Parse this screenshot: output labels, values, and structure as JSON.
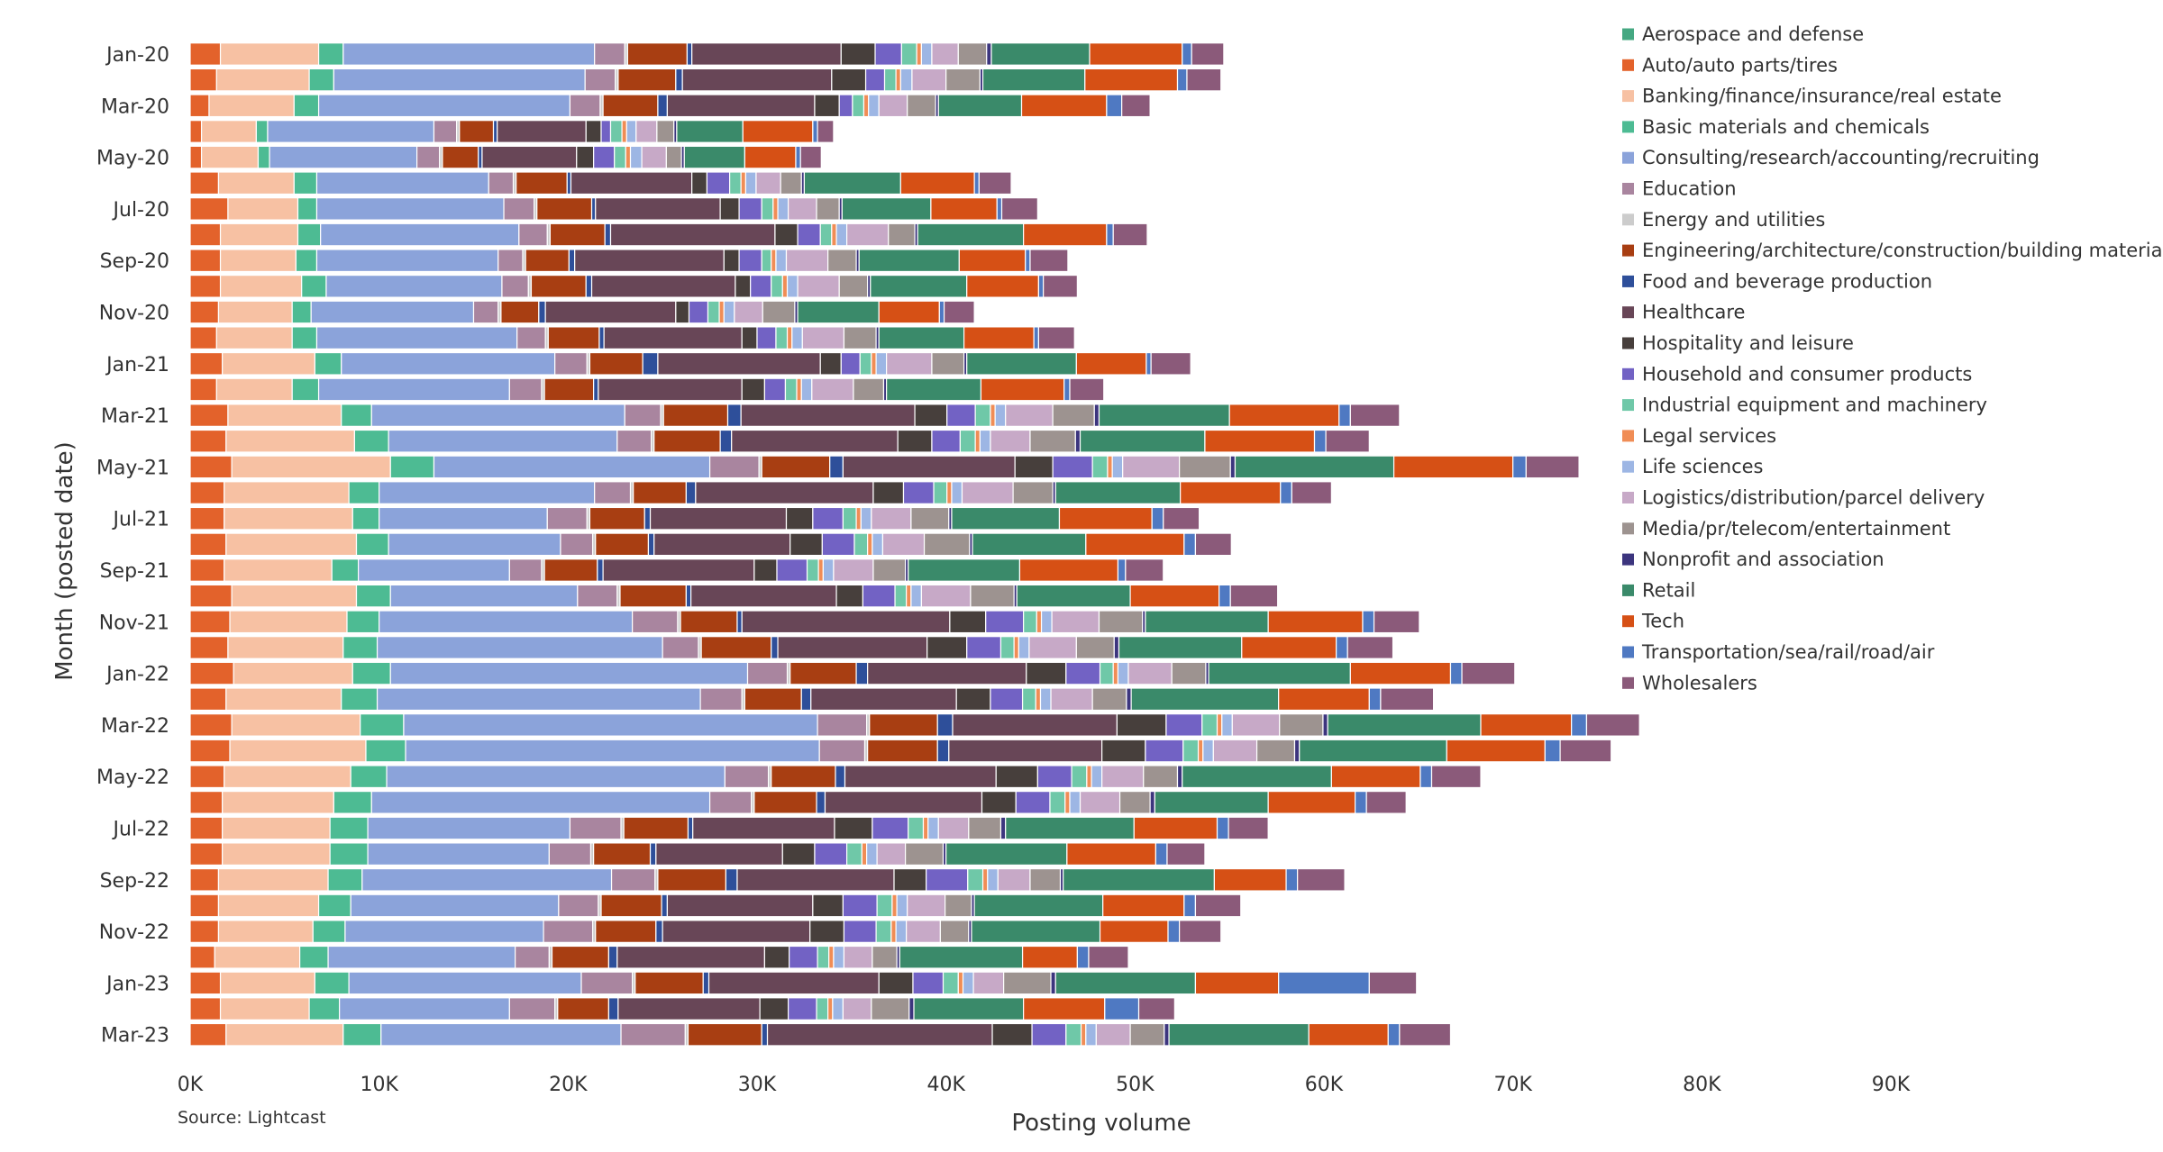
{
  "chart_data": {
    "type": "bar",
    "orientation": "horizontal",
    "stacked": true,
    "title": "",
    "xlabel": "Posting volume",
    "ylabel": "Month (posted date)",
    "xlim": [
      0,
      90000
    ],
    "x_ticks": [
      0,
      10000,
      20000,
      30000,
      40000,
      50000,
      60000,
      70000,
      80000,
      90000
    ],
    "x_tick_labels": [
      "0K",
      "10K",
      "20K",
      "30K",
      "40K",
      "50K",
      "60K",
      "70K",
      "80K",
      "90K"
    ],
    "grid": false,
    "legend_position": "right",
    "source": "Source: Lightcast",
    "categories": [
      "Jan-20",
      "Feb-20",
      "Mar-20",
      "Apr-20",
      "May-20",
      "Jun-20",
      "Jul-20",
      "Aug-20",
      "Sep-20",
      "Oct-20",
      "Nov-20",
      "Dec-20",
      "Jan-21",
      "Feb-21",
      "Mar-21",
      "Apr-21",
      "May-21",
      "Jun-21",
      "Jul-21",
      "Aug-21",
      "Sep-21",
      "Oct-21",
      "Nov-21",
      "Dec-21",
      "Jan-22",
      "Feb-22",
      "Mar-22",
      "Apr-22",
      "May-22",
      "Jun-22",
      "Jul-22",
      "Aug-22",
      "Sep-22",
      "Oct-22",
      "Nov-22",
      "Dec-22",
      "Jan-23",
      "Feb-23",
      "Mar-23"
    ],
    "category_labels": [
      "Jan-20",
      "",
      "Mar-20",
      "",
      "May-20",
      "",
      "Jul-20",
      "",
      "Sep-20",
      "",
      "Nov-20",
      "",
      "Jan-21",
      "",
      "Mar-21",
      "",
      "May-21",
      "",
      "Jul-21",
      "",
      "Sep-21",
      "",
      "Nov-21",
      "",
      "Jan-22",
      "",
      "Mar-22",
      "",
      "May-22",
      "",
      "Jul-22",
      "",
      "Sep-22",
      "",
      "Nov-22",
      "",
      "Jan-23",
      "",
      "Mar-23"
    ],
    "series": [
      {
        "name": "Aerospace and defense",
        "color": "#45a882"
      },
      {
        "name": "Auto/auto parts/tires",
        "color": "#e3622b"
      },
      {
        "name": "Banking/finance/insurance/real estate",
        "color": "#f7c1a3"
      },
      {
        "name": "Basic materials and chemicals",
        "color": "#4dbb93"
      },
      {
        "name": "Consulting/research/accounting/recruiting",
        "color": "#8ba3da"
      },
      {
        "name": "Education",
        "color": "#a9859f"
      },
      {
        "name": "Energy and utilities",
        "color": "#cccccc"
      },
      {
        "name": "Engineering/architecture/construction/building materials",
        "color": "#a83e12"
      },
      {
        "name": "Food and beverage production",
        "color": "#2e4f9a"
      },
      {
        "name": "Healthcare",
        "color": "#684657"
      },
      {
        "name": "Hospitality and leisure",
        "color": "#473f3c"
      },
      {
        "name": "Household and consumer products",
        "color": "#7262c4"
      },
      {
        "name": "Industrial equipment and machinery",
        "color": "#6fc8a8"
      },
      {
        "name": "Legal services",
        "color": "#f08d56"
      },
      {
        "name": "Life sciences",
        "color": "#9db6e4"
      },
      {
        "name": "Logistics/distribution/parcel delivery",
        "color": "#c7a9c7"
      },
      {
        "name": "Media/pr/telecom/entertainment",
        "color": "#9d9390"
      },
      {
        "name": "Nonprofit and association",
        "color": "#3c357e"
      },
      {
        "name": "Retail",
        "color": "#3a8a6a"
      },
      {
        "name": "Tech",
        "color": "#d65015"
      },
      {
        "name": "Transportation/sea/rail/road/air",
        "color": "#4f79c2"
      },
      {
        "name": "Wholesalers",
        "color": "#8b5a7a"
      }
    ],
    "values": [
      [
        0,
        1600,
        5200,
        1300,
        13300,
        1600,
        150,
        3150,
        250,
        7900,
        1800,
        1400,
        800,
        250,
        550,
        1400,
        1500,
        250,
        5200,
        4900,
        500,
        1700
      ],
      [
        0,
        1400,
        4900,
        1300,
        13300,
        1600,
        150,
        3050,
        350,
        7900,
        1800,
        1000,
        600,
        250,
        600,
        1800,
        1800,
        150,
        5400,
        4900,
        500,
        1800
      ],
      [
        0,
        1000,
        4500,
        1300,
        13300,
        1600,
        150,
        2900,
        500,
        7800,
        1300,
        700,
        600,
        250,
        550,
        1500,
        1500,
        150,
        4400,
        4500,
        800,
        1500
      ],
      [
        0,
        600,
        2900,
        600,
        8800,
        1200,
        150,
        1800,
        200,
        4700,
        800,
        500,
        600,
        250,
        500,
        1100,
        900,
        150,
        3500,
        3700,
        250,
        850
      ],
      [
        0,
        600,
        3000,
        600,
        7800,
        1200,
        150,
        1900,
        200,
        5000,
        900,
        1100,
        600,
        250,
        600,
        1300,
        800,
        150,
        3200,
        2700,
        250,
        1100
      ],
      [
        0,
        1500,
        4000,
        1200,
        9100,
        1300,
        150,
        2700,
        200,
        6400,
        800,
        1200,
        600,
        250,
        550,
        1300,
        1100,
        150,
        5100,
        3900,
        250,
        1700
      ],
      [
        0,
        2000,
        3700,
        1000,
        9900,
        1600,
        150,
        2900,
        200,
        6600,
        1000,
        1200,
        600,
        250,
        550,
        1500,
        1200,
        150,
        4700,
        3500,
        250,
        1900
      ],
      [
        0,
        1600,
        4100,
        1200,
        10500,
        1500,
        150,
        2900,
        300,
        8700,
        1200,
        1200,
        600,
        250,
        550,
        2200,
        1400,
        150,
        5600,
        4400,
        350,
        1800
      ],
      [
        0,
        1600,
        4000,
        1100,
        9600,
        1300,
        150,
        2300,
        300,
        7900,
        800,
        1200,
        500,
        250,
        550,
        2200,
        1500,
        150,
        5300,
        3500,
        250,
        2000
      ],
      [
        0,
        1600,
        4300,
        1300,
        9300,
        1400,
        150,
        2900,
        300,
        7600,
        800,
        1100,
        600,
        250,
        550,
        2200,
        1500,
        150,
        5100,
        3800,
        250,
        1800
      ],
      [
        0,
        1500,
        3900,
        1000,
        8600,
        1300,
        150,
        2000,
        350,
        6900,
        700,
        1000,
        600,
        250,
        550,
        1500,
        1700,
        150,
        4300,
        3200,
        250,
        1600
      ],
      [
        0,
        1400,
        4000,
        1300,
        10600,
        1500,
        150,
        2700,
        250,
        7300,
        800,
        1000,
        600,
        250,
        550,
        2200,
        1700,
        150,
        4500,
        3700,
        250,
        1900
      ],
      [
        0,
        1700,
        4900,
        1400,
        11300,
        1700,
        150,
        2800,
        800,
        8600,
        1100,
        1000,
        600,
        250,
        550,
        2400,
        1700,
        150,
        5800,
        3700,
        250,
        2100
      ],
      [
        0,
        1400,
        4000,
        1400,
        10100,
        1700,
        150,
        2600,
        250,
        7600,
        1200,
        1100,
        600,
        250,
        550,
        2200,
        1600,
        150,
        5000,
        4400,
        300,
        1800
      ],
      [
        0,
        2000,
        6000,
        1600,
        13400,
        1900,
        150,
        3400,
        700,
        9200,
        1700,
        1500,
        800,
        250,
        550,
        2500,
        2200,
        250,
        6900,
        5800,
        600,
        2600
      ],
      [
        0,
        1900,
        6800,
        1800,
        12100,
        1800,
        150,
        3500,
        600,
        8800,
        1800,
        1500,
        800,
        250,
        550,
        2100,
        2400,
        250,
        6600,
        5800,
        600,
        2300
      ],
      [
        0,
        2200,
        8400,
        2300,
        14600,
        2600,
        150,
        3600,
        700,
        9100,
        2000,
        2100,
        800,
        250,
        550,
        3000,
        2700,
        250,
        8400,
        6300,
        700,
        2800
      ],
      [
        0,
        1800,
        6600,
        1600,
        11400,
        1900,
        150,
        2800,
        500,
        9400,
        1600,
        1600,
        700,
        250,
        550,
        2700,
        2100,
        150,
        6600,
        5300,
        600,
        2100
      ],
      [
        0,
        1800,
        6800,
        1400,
        8900,
        2100,
        150,
        2900,
        300,
        7200,
        1400,
        1600,
        700,
        250,
        550,
        2100,
        2000,
        150,
        5700,
        4900,
        600,
        1900
      ],
      [
        0,
        1900,
        6900,
        1700,
        9100,
        1700,
        150,
        2800,
        300,
        7200,
        1700,
        1700,
        700,
        250,
        550,
        2200,
        2400,
        150,
        6000,
        5200,
        600,
        1900
      ],
      [
        0,
        1800,
        5700,
        1400,
        8000,
        1700,
        150,
        2800,
        300,
        8000,
        1200,
        1600,
        600,
        250,
        550,
        2100,
        1700,
        150,
        5900,
        5200,
        400,
        2000
      ],
      [
        0,
        2200,
        6600,
        1800,
        9900,
        2100,
        150,
        3500,
        250,
        7700,
        1400,
        1700,
        600,
        250,
        550,
        2600,
        2300,
        150,
        6000,
        4700,
        600,
        2500
      ],
      [
        0,
        2100,
        6200,
        1700,
        13400,
        2400,
        150,
        3000,
        250,
        11000,
        1900,
        2000,
        700,
        250,
        550,
        2500,
        2300,
        150,
        6500,
        5000,
        600,
        2400
      ],
      [
        0,
        2000,
        6100,
        1800,
        15100,
        1900,
        150,
        3700,
        350,
        7900,
        2100,
        1800,
        700,
        250,
        550,
        2500,
        2000,
        250,
        6500,
        5000,
        600,
        2400
      ],
      [
        0,
        2300,
        6300,
        2000,
        18900,
        2100,
        150,
        3500,
        600,
        8400,
        2100,
        1800,
        700,
        250,
        550,
        2300,
        1800,
        150,
        7500,
        5300,
        600,
        2800
      ],
      [
        0,
        1900,
        6100,
        1900,
        17100,
        2200,
        150,
        3000,
        500,
        7700,
        1800,
        1700,
        700,
        250,
        550,
        2200,
        1800,
        250,
        7800,
        4800,
        600,
        2800
      ],
      [
        0,
        2200,
        6800,
        2300,
        21900,
        2600,
        150,
        3600,
        800,
        8700,
        2600,
        1900,
        800,
        250,
        550,
        2500,
        2300,
        250,
        8100,
        4800,
        800,
        2800
      ],
      [
        0,
        2100,
        7200,
        2100,
        21900,
        2400,
        150,
        3700,
        600,
        8100,
        2300,
        2000,
        800,
        250,
        550,
        2300,
        2000,
        250,
        7800,
        5200,
        800,
        2700
      ],
      [
        0,
        1800,
        6700,
        1900,
        17900,
        2300,
        150,
        3400,
        500,
        8000,
        2200,
        1800,
        800,
        250,
        550,
        2200,
        1800,
        250,
        7900,
        4700,
        600,
        2600
      ],
      [
        0,
        1700,
        5900,
        2000,
        17900,
        2200,
        150,
        3300,
        450,
        8300,
        1800,
        1800,
        800,
        250,
        550,
        2100,
        1600,
        250,
        6000,
        4600,
        600,
        2100
      ],
      [
        0,
        1700,
        5700,
        2000,
        10700,
        2700,
        150,
        3400,
        250,
        7500,
        2000,
        1900,
        800,
        250,
        550,
        1600,
        1700,
        250,
        6800,
        4400,
        600,
        2100
      ],
      [
        0,
        1700,
        5700,
        2000,
        9600,
        2200,
        150,
        3000,
        300,
        6700,
        1700,
        1700,
        800,
        250,
        550,
        1500,
        2000,
        150,
        6400,
        4700,
        600,
        2000
      ],
      [
        0,
        1500,
        5800,
        1800,
        13200,
        2300,
        150,
        3600,
        600,
        8300,
        1700,
        2200,
        800,
        250,
        550,
        1700,
        1600,
        150,
        8000,
        3800,
        600,
        2500
      ],
      [
        0,
        1500,
        5300,
        1700,
        11000,
        2100,
        150,
        3200,
        300,
        7700,
        1600,
        1800,
        800,
        250,
        550,
        2000,
        1400,
        150,
        6800,
        4300,
        600,
        2400
      ],
      [
        0,
        1500,
        5000,
        1700,
        10500,
        2600,
        150,
        3200,
        350,
        7800,
        1800,
        1700,
        800,
        250,
        550,
        1800,
        1500,
        150,
        6800,
        3600,
        600,
        2200
      ],
      [
        0,
        1300,
        4500,
        1500,
        9900,
        1800,
        150,
        3000,
        450,
        7800,
        1300,
        1500,
        600,
        250,
        550,
        1500,
        1300,
        150,
        6500,
        2900,
        600,
        2100
      ],
      [
        0,
        1600,
        5000,
        1800,
        12300,
        2700,
        150,
        3600,
        300,
        9000,
        1800,
        1600,
        800,
        250,
        550,
        1600,
        2500,
        250,
        7400,
        4400,
        4800,
        2500
      ],
      [
        0,
        1600,
        4700,
        1600,
        9000,
        2400,
        150,
        2700,
        500,
        7500,
        1500,
        1500,
        600,
        250,
        550,
        1500,
        2000,
        250,
        5800,
        4300,
        1800,
        1900
      ],
      [
        0,
        1900,
        6200,
        2000,
        12700,
        3400,
        150,
        3900,
        300,
        11900,
        2100,
        1800,
        800,
        250,
        550,
        1800,
        1800,
        250,
        7400,
        4200,
        600,
        2700
      ]
    ]
  }
}
